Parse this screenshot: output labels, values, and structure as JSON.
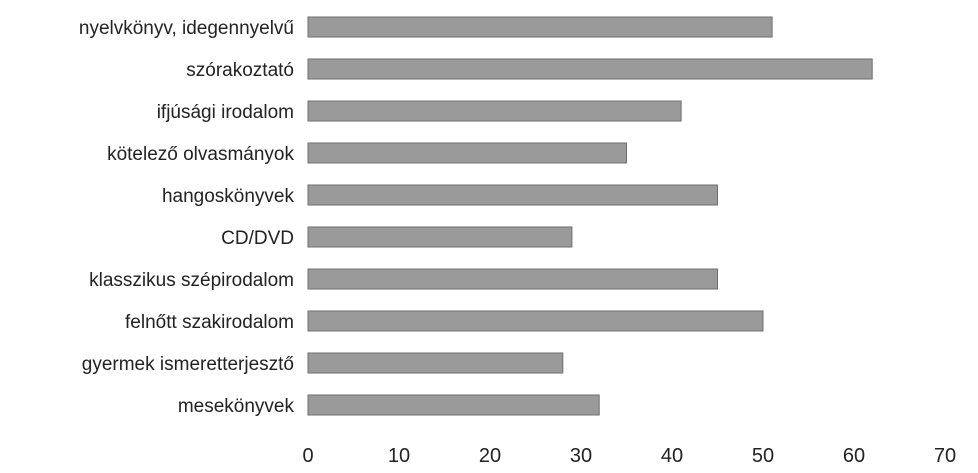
{
  "chart_data": {
    "type": "bar",
    "orientation": "horizontal",
    "categories": [
      "nyelvkönyv, idegennyelvű",
      "szórakoztató",
      "ifjúsági irodalom",
      "kötelező olvasmányok",
      "hangoskönyvek",
      "CD/DVD",
      "klasszikus szépirodalom",
      "felnőtt szakirodalom",
      "gyermek ismeretterjesztő",
      "mesekönyvek"
    ],
    "values": [
      51,
      62,
      41,
      35,
      45,
      29,
      45,
      50,
      28,
      32
    ],
    "xlim": [
      0,
      70
    ],
    "xticks": [
      "0",
      "10",
      "20",
      "30",
      "40",
      "50",
      "60",
      "70"
    ],
    "grid": false,
    "bar_color": "#9a9a9a",
    "bar_edge_color": "#6e6e6e",
    "title": "",
    "xlabel": "",
    "ylabel": ""
  }
}
